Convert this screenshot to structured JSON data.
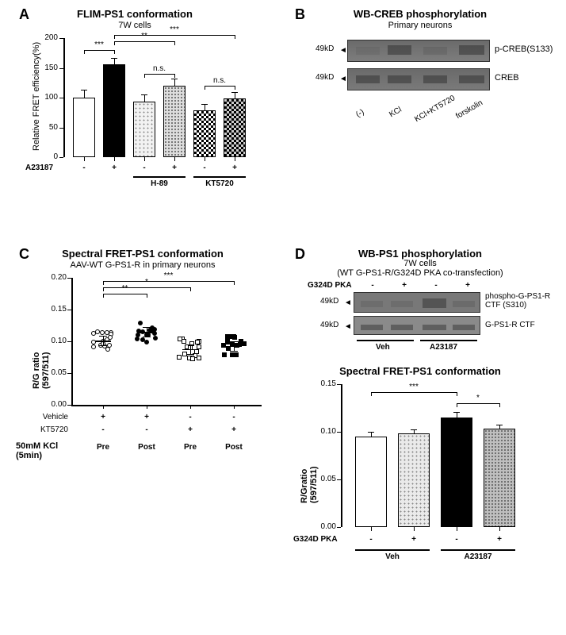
{
  "panelA": {
    "label": "A",
    "title": "FLIM-PS1 conformation",
    "subtitle": "7W cells",
    "ylabel": "Relative FRET efficiency(%)",
    "ylim": [
      0,
      200
    ],
    "ytick_step": 50,
    "bars": [
      {
        "val": 100,
        "err": 12,
        "fill": "#ffffff"
      },
      {
        "val": 156,
        "err": 10,
        "fill": "#000000"
      },
      {
        "val": 94,
        "err": 10,
        "fill": "#f2f2f2",
        "pattern": "dots-light"
      },
      {
        "val": 120,
        "err": 11,
        "fill": "#dddddd",
        "pattern": "dots-med"
      },
      {
        "val": 79,
        "err": 9,
        "fill": "#ffffff",
        "pattern": "checker"
      },
      {
        "val": 99,
        "err": 9,
        "fill": "#cccccc",
        "pattern": "checker2"
      }
    ],
    "row_label": "A23187",
    "row_vals": [
      "-",
      "+",
      "-",
      "+",
      "-",
      "+"
    ],
    "group_labels": [
      "",
      "H-89",
      "KT5720"
    ],
    "sigs": [
      {
        "from": 0,
        "to": 1,
        "text": "***",
        "y": 180
      },
      {
        "from": 1,
        "to": 3,
        "text": "**",
        "y": 195
      },
      {
        "from": 1,
        "to": 5,
        "text": "***",
        "y": 205
      },
      {
        "from": 2,
        "to": 3,
        "text": "n.s.",
        "y": 140
      },
      {
        "from": 4,
        "to": 5,
        "text": "n.s.",
        "y": 120
      }
    ]
  },
  "panelB": {
    "label": "B",
    "title": "WB-CREB phosphorylation",
    "subtitle": "Primary neurons",
    "marker": "49kD",
    "rows": [
      "p-CREB(S133)",
      "CREB"
    ],
    "lanes": [
      "(-)",
      "KCl",
      "KCl+KT5720",
      "forskolin"
    ]
  },
  "panelC": {
    "label": "C",
    "title": "Spectral FRET-PS1 conformation",
    "subtitle": "AAV-WT G-PS1-R in primary neurons",
    "ylabel": "R/G ratio\n(597/511)",
    "ylim": [
      0,
      0.2
    ],
    "yticks": [
      0.0,
      0.05,
      0.1,
      0.15,
      0.2
    ],
    "groups": [
      {
        "mean": 0.101,
        "fill": "#ffffff",
        "shape": "circle"
      },
      {
        "mean": 0.115,
        "fill": "#000000",
        "shape": "circle"
      },
      {
        "mean": 0.088,
        "fill": "#ffffff",
        "shape": "square"
      },
      {
        "mean": 0.093,
        "fill": "#000000",
        "shape": "square"
      }
    ],
    "rows": [
      {
        "label": "Vehicle",
        "vals": [
          "+",
          "+",
          "-",
          "-"
        ]
      },
      {
        "label": "KT5720",
        "vals": [
          "-",
          "-",
          "+",
          "+"
        ]
      }
    ],
    "bottom_row": {
      "label": "50mM KCl\n(5min)",
      "vals": [
        "Pre",
        "Post",
        "Pre",
        "Post"
      ]
    },
    "sigs": [
      {
        "from": 0,
        "to": 1,
        "text": "**",
        "y": 0.175
      },
      {
        "from": 0,
        "to": 2,
        "text": "*",
        "y": 0.185
      },
      {
        "from": 0,
        "to": 3,
        "text": "***",
        "y": 0.195
      }
    ]
  },
  "panelD": {
    "label": "D",
    "title_wb": "WB-PS1 phosphorylation",
    "subtitle_wb": "7W cells\n(WT G-PS1-R/G324D PKA co-transfection)",
    "marker": "49kD",
    "wb_rows": [
      "phospho-G-PS1-R\nCTF (S310)",
      "G-PS1-R CTF"
    ],
    "wb_top_label": "G324D PKA",
    "wb_top_vals": [
      "-",
      "+",
      "-",
      "+"
    ],
    "wb_bottom": [
      "Veh",
      "A23187"
    ],
    "chart_title": "Spectral FRET-PS1 conformation",
    "ylabel": "R/Gratio\n(597/511)",
    "ylim": [
      0,
      0.15
    ],
    "yticks": [
      0.0,
      0.05,
      0.1,
      0.15
    ],
    "bars": [
      {
        "val": 0.095,
        "err": 0.004,
        "fill": "#ffffff"
      },
      {
        "val": 0.098,
        "err": 0.004,
        "fill": "#eaeaea",
        "pattern": "dots-light"
      },
      {
        "val": 0.115,
        "err": 0.005,
        "fill": "#000000"
      },
      {
        "val": 0.103,
        "err": 0.004,
        "fill": "#bfbfbf",
        "pattern": "dots-med"
      }
    ],
    "row_label": "G324D PKA",
    "row_vals": [
      "-",
      "+",
      "-",
      "+"
    ],
    "group_labels": [
      "Veh",
      "A23187"
    ],
    "sigs": [
      {
        "from": 0,
        "to": 2,
        "text": "***",
        "y": 0.142
      },
      {
        "from": 2,
        "to": 3,
        "text": "*",
        "y": 0.13
      }
    ]
  }
}
